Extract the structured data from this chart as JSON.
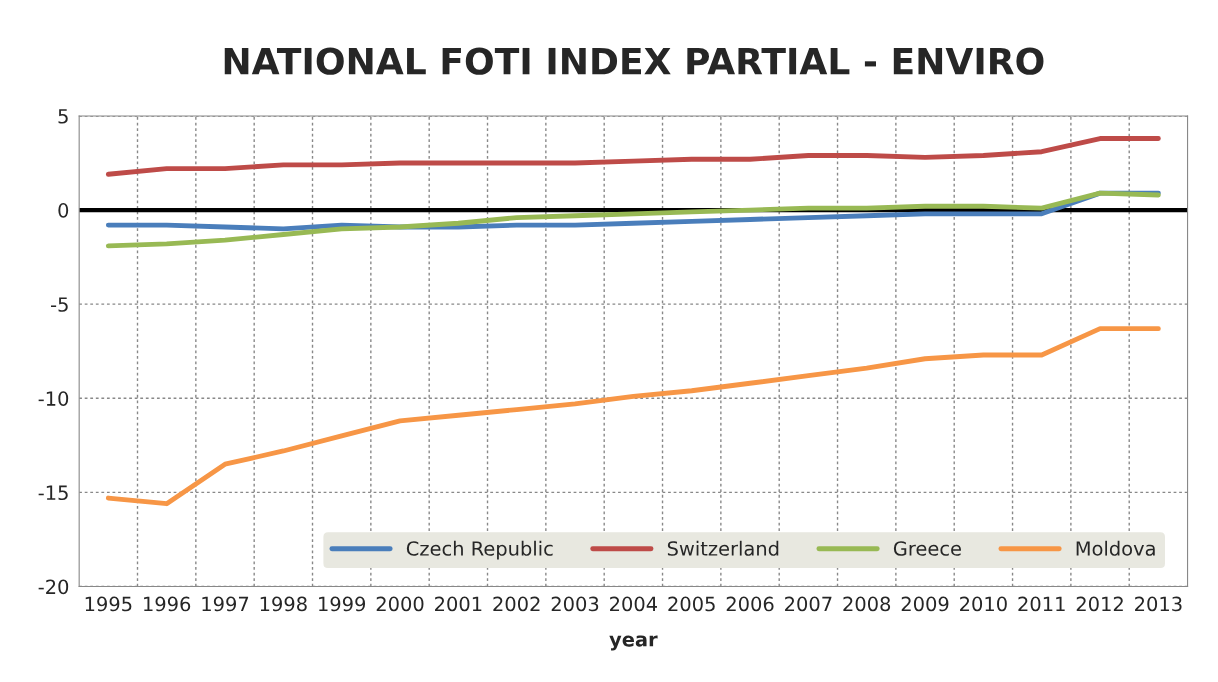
{
  "chart_data": {
    "type": "line",
    "title": "NATIONAL FOTI INDEX PARTIAL - ENVIRO",
    "xlabel": "year",
    "categories": [
      "1995",
      "1996",
      "1997",
      "1998",
      "1999",
      "2000",
      "2001",
      "2002",
      "2003",
      "2004",
      "2005",
      "2006",
      "2007",
      "2008",
      "2009",
      "2010",
      "2011",
      "2012",
      "2013"
    ],
    "series": [
      {
        "name": "Czech Republic",
        "color": "#4a7ebb",
        "values": [
          -0.8,
          -0.8,
          -0.9,
          -1.0,
          -0.8,
          -0.9,
          -0.9,
          -0.8,
          -0.8,
          -0.7,
          -0.6,
          -0.5,
          -0.4,
          -0.3,
          -0.2,
          -0.2,
          -0.2,
          0.9,
          0.9
        ]
      },
      {
        "name": "Switzerland",
        "color": "#be4b48",
        "values": [
          1.9,
          2.2,
          2.2,
          2.4,
          2.4,
          2.5,
          2.5,
          2.5,
          2.5,
          2.6,
          2.7,
          2.7,
          2.9,
          2.9,
          2.8,
          2.9,
          3.1,
          3.8,
          3.8
        ]
      },
      {
        "name": "Greece",
        "color": "#98b954",
        "values": [
          -1.9,
          -1.8,
          -1.6,
          -1.3,
          -1.0,
          -0.9,
          -0.7,
          -0.4,
          -0.3,
          -0.2,
          -0.1,
          0.0,
          0.1,
          0.1,
          0.2,
          0.2,
          0.1,
          0.9,
          0.8
        ]
      },
      {
        "name": "Moldova",
        "color": "#f79646",
        "values": [
          -15.3,
          -15.6,
          -13.5,
          -12.8,
          -12.0,
          -11.2,
          -10.9,
          -10.6,
          -10.3,
          -9.9,
          -9.6,
          -9.2,
          -8.8,
          -8.4,
          -7.9,
          -7.7,
          -7.7,
          -6.3,
          -6.3
        ]
      }
    ],
    "ylim": [
      -20,
      5
    ],
    "yticks": [
      -20,
      -15,
      -10,
      -5,
      0,
      5
    ],
    "ref_lines": [
      {
        "axis": "y",
        "value": 0,
        "color": "#000000"
      }
    ],
    "grid": true,
    "legend": "bottom",
    "marker": "none",
    "line_style": "solid"
  }
}
